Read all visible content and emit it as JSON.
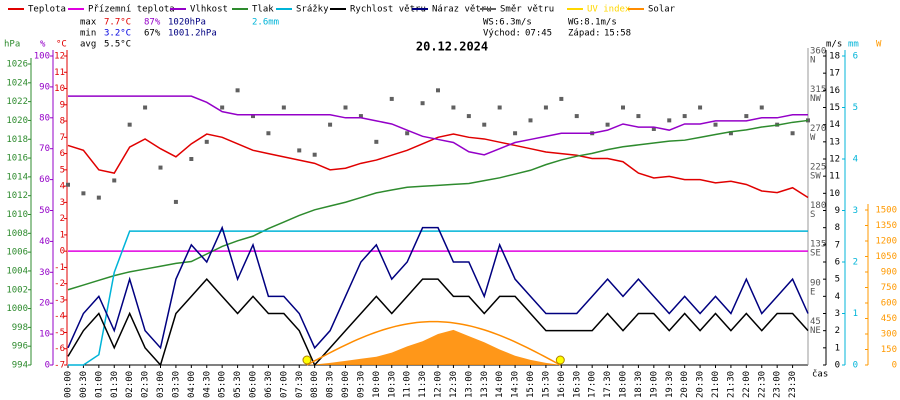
{
  "chart_data": {
    "type": "line",
    "title": "20.12.2024",
    "x_label": "čas",
    "xlim": [
      0,
      24
    ],
    "x": [
      0,
      0.5,
      1,
      1.5,
      2,
      2.5,
      3,
      3.5,
      4,
      4.5,
      5,
      5.5,
      6,
      6.5,
      7,
      7.5,
      8,
      8.5,
      9,
      9.5,
      10,
      10.5,
      11,
      11.5,
      12,
      12.5,
      13,
      13.5,
      14,
      14.5,
      15,
      15.5,
      16,
      16.5,
      17,
      17.5,
      18,
      18.5,
      19,
      19.5,
      20,
      20.5,
      21,
      21.5,
      22,
      22.5,
      23,
      23.5,
      24
    ],
    "xticks": [
      {
        "value": 0,
        "label": "00:00"
      },
      {
        "value": 0.5,
        "label": "00:30"
      },
      {
        "value": 1,
        "label": "01:00"
      },
      {
        "value": 1.5,
        "label": "01:30"
      },
      {
        "value": 2,
        "label": "02:00"
      },
      {
        "value": 2.5,
        "label": "02:30"
      },
      {
        "value": 3,
        "label": "03:00"
      },
      {
        "value": 3.5,
        "label": "03:30"
      },
      {
        "value": 4,
        "label": "04:00"
      },
      {
        "value": 4.5,
        "label": "04:30"
      },
      {
        "value": 5,
        "label": "05:00"
      },
      {
        "value": 5.5,
        "label": "05:30"
      },
      {
        "value": 6,
        "label": "06:00"
      },
      {
        "value": 6.5,
        "label": "06:30"
      },
      {
        "value": 7,
        "label": "07:00"
      },
      {
        "value": 7.5,
        "label": "07:30"
      },
      {
        "value": 8,
        "label": "08:00"
      },
      {
        "value": 8.5,
        "label": "08:30"
      },
      {
        "value": 9,
        "label": "09:00"
      },
      {
        "value": 9.5,
        "label": "09:30"
      },
      {
        "value": 10,
        "label": "10:00"
      },
      {
        "value": 10.5,
        "label": "10:30"
      },
      {
        "value": 11,
        "label": "11:00"
      },
      {
        "value": 11.5,
        "label": "11:30"
      },
      {
        "value": 12,
        "label": "12:00"
      },
      {
        "value": 12.5,
        "label": "12:30"
      },
      {
        "value": 13,
        "label": "13:00"
      },
      {
        "value": 13.5,
        "label": "13:30"
      },
      {
        "value": 14,
        "label": "14:00"
      },
      {
        "value": 14.5,
        "label": "14:30"
      },
      {
        "value": 15,
        "label": "15:00"
      },
      {
        "value": 15.5,
        "label": "15:30"
      },
      {
        "value": 16,
        "label": "16:00"
      },
      {
        "value": 16.5,
        "label": "16:30"
      },
      {
        "value": 17,
        "label": "17:00"
      },
      {
        "value": 17.5,
        "label": "17:30"
      },
      {
        "value": 18,
        "label": "18:00"
      },
      {
        "value": 18.5,
        "label": "18:30"
      },
      {
        "value": 19,
        "label": "19:00"
      },
      {
        "value": 19.5,
        "label": "19:30"
      },
      {
        "value": 20,
        "label": "20:00"
      },
      {
        "value": 20.5,
        "label": "20:30"
      },
      {
        "value": 21,
        "label": "21:00"
      },
      {
        "value": 21.5,
        "label": "21:30"
      },
      {
        "value": 22,
        "label": "22:00"
      },
      {
        "value": 22.5,
        "label": "22:30"
      },
      {
        "value": 23,
        "label": "23:00"
      },
      {
        "value": 23.5,
        "label": "23:30"
      }
    ],
    "axes": {
      "hpa": {
        "label": "hPa",
        "color": "#2e8b2e",
        "lim": [
          994,
          1026
        ],
        "ticks": [
          994,
          996,
          998,
          1000,
          1002,
          1004,
          1006,
          1008,
          1010,
          1012,
          1014,
          1016,
          1018,
          1020,
          1022,
          1024,
          1026
        ]
      },
      "pct": {
        "label": "%",
        "color": "#9400c8",
        "lim": [
          0,
          100
        ],
        "ticks": [
          0,
          10,
          20,
          30,
          40,
          50,
          60,
          70,
          80,
          90,
          100
        ]
      },
      "t": {
        "label": "°C",
        "color": "#e00000",
        "lim": [
          -7,
          12
        ],
        "ticks": [
          -7,
          -6,
          -5,
          -4,
          -3,
          -2,
          -1,
          0,
          1,
          2,
          3,
          4,
          5,
          6,
          7,
          8,
          9,
          10,
          11,
          12
        ]
      },
      "dir": {
        "color": "#555555",
        "lim": [
          0,
          360
        ],
        "ticks": [
          45,
          90,
          135,
          180,
          225,
          270,
          315,
          360
        ],
        "compass": [
          "NE",
          "E",
          "SE",
          "S",
          "SW",
          "W",
          "NW",
          "N"
        ]
      },
      "ms": {
        "label": "m/s",
        "color": "#000000",
        "lim": [
          0,
          18
        ],
        "ticks": [
          0,
          1,
          2,
          3,
          4,
          5,
          6,
          7,
          8,
          9,
          10,
          11,
          12,
          13,
          14,
          15,
          16,
          17,
          18
        ]
      },
      "mm": {
        "label": "mm",
        "color": "#00b4d8",
        "lim": [
          0,
          6
        ],
        "ticks": [
          0,
          1,
          2,
          3,
          4,
          5,
          6
        ]
      },
      "w": {
        "label": "W",
        "color": "#ff9900",
        "lim": [
          0,
          1500
        ],
        "ticks": [
          0,
          150,
          300,
          450,
          600,
          750,
          900,
          1050,
          1200,
          1350,
          1500
        ]
      }
    },
    "series": [
      {
        "name": "Teplota",
        "color": "#e00000",
        "axis": "t",
        "style": "line",
        "values": [
          6.5,
          6.2,
          5.0,
          4.8,
          6.4,
          6.9,
          6.3,
          5.8,
          6.6,
          7.2,
          7.0,
          6.6,
          6.2,
          6.0,
          5.8,
          5.6,
          5.4,
          5.0,
          5.1,
          5.4,
          5.6,
          5.9,
          6.2,
          6.6,
          7.0,
          7.2,
          7.0,
          6.9,
          6.7,
          6.5,
          6.3,
          6.1,
          6.0,
          5.9,
          5.7,
          5.7,
          5.5,
          4.8,
          4.5,
          4.6,
          4.4,
          4.4,
          4.2,
          4.3,
          4.1,
          3.7,
          3.6,
          3.9,
          3.3
        ]
      },
      {
        "name": "Přízemní teplota",
        "color": "#e000e0",
        "axis": "t",
        "style": "line",
        "values": [
          0,
          0,
          0,
          0,
          0,
          0,
          0,
          0,
          0,
          0,
          0,
          0,
          0,
          0,
          0,
          0,
          0,
          0,
          0,
          0,
          0,
          0,
          0,
          0,
          0,
          0,
          0,
          0,
          0,
          0,
          0,
          0,
          0,
          0,
          0,
          0,
          0,
          0,
          0,
          0,
          0,
          0,
          0,
          0,
          0,
          0,
          0,
          0,
          0
        ]
      },
      {
        "name": "Vlhkost",
        "color": "#9400c8",
        "axis": "pct",
        "style": "line",
        "values": [
          87,
          87,
          87,
          87,
          87,
          87,
          87,
          87,
          87,
          85,
          82,
          81,
          81,
          81,
          81,
          81,
          81,
          81,
          80,
          80,
          79,
          78,
          76,
          74,
          73,
          72,
          69,
          68,
          70,
          72,
          73,
          74,
          75,
          75,
          75,
          76,
          78,
          77,
          77,
          76,
          78,
          78,
          79,
          79,
          79,
          80,
          80,
          81,
          81
        ]
      },
      {
        "name": "Tlak",
        "color": "#2e8b2e",
        "axis": "hpa",
        "style": "line",
        "values": [
          1002.0,
          1002.5,
          1003.0,
          1003.5,
          1003.9,
          1004.2,
          1004.5,
          1004.8,
          1005.0,
          1005.8,
          1006.6,
          1007.2,
          1007.7,
          1008.5,
          1009.2,
          1009.9,
          1010.5,
          1010.9,
          1011.3,
          1011.8,
          1012.3,
          1012.6,
          1012.9,
          1013.0,
          1013.1,
          1013.2,
          1013.3,
          1013.6,
          1013.9,
          1014.3,
          1014.7,
          1015.3,
          1015.8,
          1016.2,
          1016.5,
          1016.9,
          1017.2,
          1017.4,
          1017.6,
          1017.8,
          1017.9,
          1018.2,
          1018.5,
          1018.8,
          1019.0,
          1019.3,
          1019.5,
          1019.8,
          1020.0
        ]
      },
      {
        "name": "Srážky",
        "color": "#00b4d8",
        "axis": "mm",
        "style": "line",
        "values": [
          0,
          0,
          0.2,
          1.8,
          2.6,
          2.6,
          2.6,
          2.6,
          2.6,
          2.6,
          2.6,
          2.6,
          2.6,
          2.6,
          2.6,
          2.6,
          2.6,
          2.6,
          2.6,
          2.6,
          2.6,
          2.6,
          2.6,
          2.6,
          2.6,
          2.6,
          2.6,
          2.6,
          2.6,
          2.6,
          2.6,
          2.6,
          2.6,
          2.6,
          2.6,
          2.6,
          2.6,
          2.6,
          2.6,
          2.6,
          2.6,
          2.6,
          2.6,
          2.6,
          2.6,
          2.6,
          2.6,
          2.6,
          2.6
        ]
      },
      {
        "name": "Rychlost větru",
        "color": "#000000",
        "axis": "ms",
        "style": "line",
        "values": [
          0.5,
          2,
          3,
          1,
          3,
          1,
          0,
          3,
          4,
          5,
          4,
          3,
          4,
          3,
          3,
          2,
          0,
          1,
          2,
          3,
          4,
          3,
          4,
          5,
          5,
          4,
          4,
          3,
          4,
          4,
          3,
          2,
          2,
          2,
          2,
          3,
          2,
          3,
          3,
          2,
          3,
          2,
          3,
          2,
          3,
          2,
          3,
          3,
          2
        ]
      },
      {
        "name": "Náraz větru",
        "color": "#000080",
        "axis": "ms",
        "style": "line",
        "values": [
          1,
          3,
          4,
          2,
          5,
          2,
          1,
          5,
          7,
          6,
          8,
          5,
          7,
          4,
          4,
          3,
          1,
          2,
          4,
          6,
          7,
          5,
          6,
          8,
          8,
          6,
          6,
          4,
          7,
          5,
          4,
          3,
          3,
          3,
          4,
          5,
          4,
          5,
          4,
          3,
          4,
          3,
          4,
          3,
          5,
          3,
          4,
          5,
          3
        ]
      },
      {
        "name": "Směr větru",
        "color": "#606060",
        "axis": "dir",
        "style": "dots",
        "values": [
          210,
          200,
          195,
          215,
          280,
          300,
          230,
          190,
          240,
          260,
          300,
          320,
          290,
          270,
          300,
          250,
          245,
          280,
          300,
          290,
          260,
          310,
          270,
          305,
          320,
          300,
          290,
          280,
          300,
          270,
          285,
          300,
          310,
          290,
          270,
          280,
          300,
          290,
          275,
          285,
          290,
          300,
          280,
          270,
          290,
          300,
          280,
          270,
          285
        ]
      },
      {
        "name": "UV index",
        "color": "#ffd700",
        "axis": "w",
        "style": "line",
        "values": [
          null,
          null,
          null,
          null,
          null,
          null,
          null,
          null,
          null,
          null,
          null,
          null,
          null,
          null,
          null,
          null,
          null,
          null,
          null,
          null,
          null,
          null,
          null,
          null,
          null,
          null,
          null,
          null,
          null,
          null,
          null,
          null,
          null,
          null,
          null,
          null,
          null,
          null,
          null,
          null,
          null,
          null,
          null,
          null,
          null,
          null,
          null,
          null,
          null
        ]
      },
      {
        "name": "Solar",
        "color": "#ff8c00",
        "axis": "w",
        "style": "area",
        "values": [
          0,
          0,
          0,
          0,
          0,
          0,
          0,
          0,
          0,
          0,
          0,
          0,
          0,
          0,
          0,
          0,
          5,
          20,
          40,
          60,
          80,
          120,
          180,
          230,
          300,
          340,
          280,
          220,
          150,
          90,
          50,
          20,
          0,
          0,
          0,
          0,
          0,
          0,
          0,
          0,
          0,
          0,
          0,
          0,
          0,
          0,
          0,
          0,
          0
        ]
      }
    ],
    "clear_sky_peak": 420,
    "stats": {
      "max": {
        "label": "max",
        "t": "7.7°C",
        "h": "87%",
        "p": "1020hPa",
        "r": "2.6mm"
      },
      "min": {
        "label": "min",
        "t": "3.2°C",
        "h": "67%",
        "p": "1001.2hPa"
      },
      "avg": {
        "label": "avg",
        "t": "5.5°C"
      },
      "ws": "WS:6.3m/s",
      "wg": "WG:8.1m/s",
      "rise_label": "Východ:",
      "rise": "07:45",
      "set_label": "Západ:",
      "set": "15:58"
    }
  }
}
